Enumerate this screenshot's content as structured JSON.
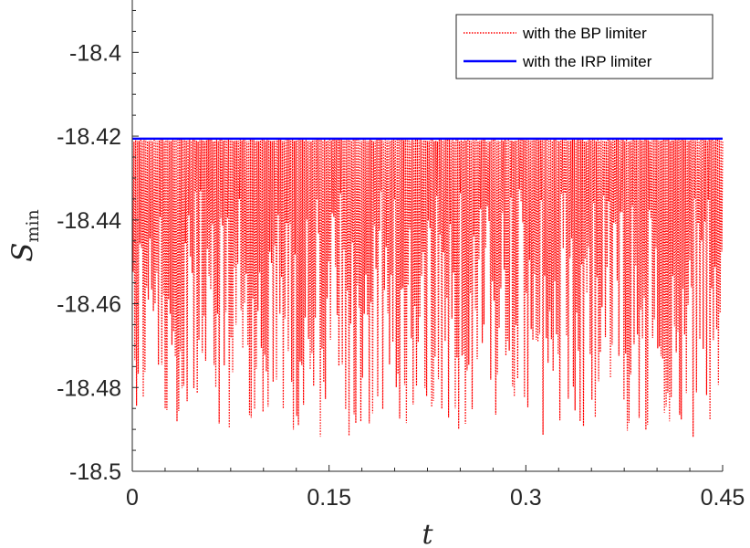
{
  "chart_data": {
    "type": "line",
    "title": "",
    "xlabel": "t",
    "ylabel": {
      "main": "S",
      "sub": "min"
    },
    "xlim": [
      0,
      0.45
    ],
    "ylim": [
      -18.5,
      -18.3875
    ],
    "xticks": [
      0,
      0.15,
      0.3,
      0.45
    ],
    "xtick_labels": [
      "0",
      "0.15",
      "0.3",
      "0.45"
    ],
    "yticks": [
      -18.5,
      -18.48,
      -18.46,
      -18.44,
      -18.42,
      -18.4
    ],
    "ytick_labels": [
      "-18.5",
      "-18.48",
      "-18.46",
      "-18.44",
      "-18.42",
      "-18.4"
    ],
    "grid": false,
    "legend_position": "top-right",
    "series": [
      {
        "name": "with the BP limiter",
        "color": "#ff0000",
        "style": "dotted",
        "description_range": [
          -18.4925,
          -18.4205
        ],
        "oscillating": true
      },
      {
        "name": "with the IRP limiter",
        "color": "#0000ff",
        "style": "solid",
        "x": [
          0,
          0.45
        ],
        "y": [
          -18.4206,
          -18.4206
        ]
      }
    ]
  }
}
